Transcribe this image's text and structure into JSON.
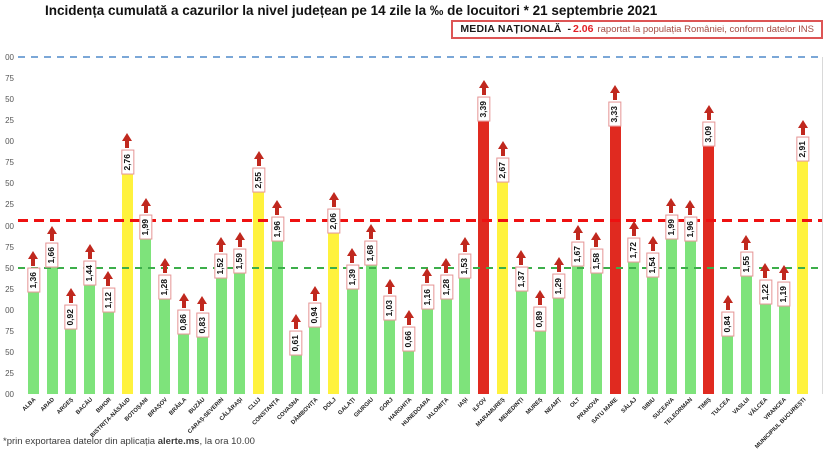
{
  "title": "Incidența cumulată a cazurilor la nivel județean pe 14 zile la ‰ de locuitori * 21 septembrie 2021",
  "national_average_box": {
    "label": "MEDIA NAȚIONALĂ",
    "separator": "-",
    "value": "2.06",
    "description": "raportat la populația României, conform datelor INS"
  },
  "footnote": {
    "prefix": "*prin exportarea datelor din aplicația ",
    "bold": "alerte.ms",
    "suffix": ", la ora 10.00"
  },
  "chart_data": {
    "type": "bar",
    "title": "Incidența cumulată a cazurilor la nivel județean pe 14 zile la ‰ de locuitori * 21 septembrie 2021",
    "categories": [
      "ALBA",
      "ARAD",
      "ARGEȘ",
      "BACĂU",
      "BIHOR",
      "BISTRIȚA-NĂSĂUD",
      "BOTOȘANI",
      "BRAȘOV",
      "BRĂILA",
      "BUZĂU",
      "CARAȘ-SEVERIN",
      "CĂLĂRAȘI",
      "CLUJ",
      "CONSTANȚA",
      "COVASNA",
      "DÂMBOVIȚA",
      "DOLJ",
      "GALAȚI",
      "GIURGIU",
      "GORJ",
      "HARGHITA",
      "HUNEDOARA",
      "IALOMIȚA",
      "IAȘI",
      "ILFOV",
      "MARAMUREȘ",
      "MEHEDINȚI",
      "MUREȘ",
      "NEAMȚ",
      "OLT",
      "PRAHOVA",
      "SATU MARE",
      "SĂLAJ",
      "SIBIU",
      "SUCEAVA",
      "TELEORMAN",
      "TIMIȘ",
      "TULCEA",
      "VASLUI",
      "VÂLCEA",
      "VRANCEA",
      "MUNICIPIUL BUCUREȘTI"
    ],
    "values": [
      1.36,
      1.66,
      0.92,
      1.44,
      1.12,
      2.76,
      1.99,
      1.28,
      0.86,
      0.83,
      1.52,
      1.59,
      2.55,
      1.96,
      0.61,
      0.94,
      2.06,
      1.39,
      1.68,
      1.03,
      0.66,
      1.16,
      1.28,
      1.53,
      3.39,
      2.67,
      1.37,
      0.89,
      1.29,
      1.67,
      1.58,
      3.33,
      1.72,
      1.54,
      1.99,
      1.96,
      3.09,
      0.84,
      1.55,
      1.22,
      1.19,
      2.91
    ],
    "labels": [
      "1,36",
      "1,66",
      "0,92",
      "1,44",
      "1,12",
      "2,76",
      "1,99",
      "1,28",
      "0,86",
      "0,83",
      "1,52",
      "1,59",
      "2,55",
      "1,96",
      "0,61",
      "0,94",
      "2,06",
      "1,39",
      "1,68",
      "1,03",
      "0,66",
      "1,16",
      "1,28",
      "1,53",
      "3,39",
      "2,67",
      "1,37",
      "0,89",
      "1,29",
      "1,67",
      "1,58",
      "3,33",
      "1,72",
      "1,54",
      "1,99",
      "1,96",
      "3,09",
      "0,84",
      "1,55",
      "1,22",
      "1,19",
      "2,91"
    ],
    "bar_color_rule": {
      "green": "value < 2",
      "yellow": "2 <= value < 3",
      "red": "value >= 3"
    },
    "colors": {
      "green": "#7ee37b",
      "yellow": "#fff23d",
      "red": "#e02a20",
      "arrow": "#c0281e"
    },
    "xlabel": "",
    "ylabel": "",
    "ylim": [
      0,
      4
    ],
    "ytick_step": 0.25,
    "ytick_labels_visible": [
      "00",
      "75",
      "50",
      "25",
      "00",
      "75",
      "50",
      "25",
      "00",
      "75",
      "50",
      "25",
      "00",
      "75",
      "50",
      "25",
      "00"
    ],
    "reference_lines": [
      {
        "label": "upper-limit",
        "value": 4.0,
        "color": "#7ba7d7",
        "thickness": 2,
        "dash": 7,
        "gap": 6
      },
      {
        "label": "media-nationala",
        "value": 2.06,
        "color": "#ee1111",
        "thickness": 3,
        "dash": 10,
        "gap": 6
      },
      {
        "label": "prag-verde",
        "value": 1.5,
        "color": "#3cae4a",
        "thickness": 2,
        "dash": 7,
        "gap": 6
      }
    ],
    "grid": false,
    "legend_position": "none"
  }
}
